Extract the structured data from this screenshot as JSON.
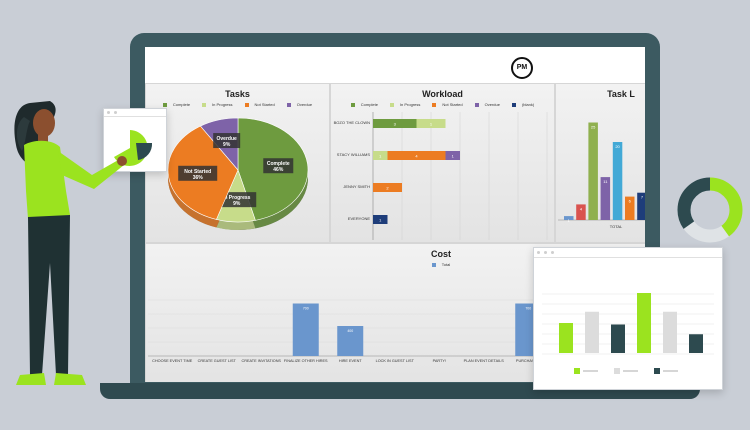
{
  "logo_text": "PM",
  "colors": {
    "complete": "#6e9b3f",
    "in_progress": "#c7dc8a",
    "not_started": "#ec7c22",
    "overdue": "#7e63a8",
    "blank": "#1e3d7a",
    "total": "#6a96cd",
    "accent": "#9be31f",
    "dark": "#2d4a4f"
  },
  "tasks": {
    "title": "Tasks",
    "legend": [
      "Complete",
      "In Progress",
      "Not Started",
      "Overdue"
    ],
    "slices": [
      {
        "label": "Complete",
        "pct": "46%",
        "value": 46
      },
      {
        "label": "In Progress",
        "pct": "9%",
        "value": 9
      },
      {
        "label": "Not Started",
        "pct": "36%",
        "value": 36
      },
      {
        "label": "Overdue",
        "pct": "9%",
        "value": 9
      }
    ]
  },
  "workload": {
    "title": "Workload",
    "legend": [
      "Complete",
      "In Progress",
      "Not Started",
      "Overdue",
      "(blank)"
    ],
    "rows": [
      {
        "name": "BOZO THE CLOWN",
        "segments": [
          {
            "s": "complete",
            "v": 3
          },
          {
            "s": "in_progress",
            "v": 1
          }
        ]
      },
      {
        "name": "STACY WILLIAMS",
        "segments": [
          {
            "s": "in_progress",
            "v": 1
          },
          {
            "s": "not_started",
            "v": 4
          },
          {
            "s": "overdue",
            "v": 1
          }
        ]
      },
      {
        "name": "JENNY SMITH",
        "segments": [
          {
            "s": "not_started",
            "v": 2
          }
        ]
      },
      {
        "name": "EVERYONE",
        "segments": [
          {
            "s": "blank",
            "v": 1
          }
        ]
      }
    ]
  },
  "task_list": {
    "title": "Task L",
    "xlabel": "TOTAL",
    "bars": [
      {
        "v": 1,
        "color": "#6a96cd",
        "label": "1"
      },
      {
        "v": 4,
        "color": "#d9534f",
        "label": "4"
      },
      {
        "v": 25,
        "color": "#8fb04e",
        "label": "25"
      },
      {
        "v": 11,
        "color": "#7e63a8",
        "label": "11"
      },
      {
        "v": 20,
        "color": "#42a9d6",
        "label": "20"
      },
      {
        "v": 6,
        "color": "#ec7c22",
        "label": "6"
      },
      {
        "v": 7,
        "color": "#1e3d7a",
        "label": "7"
      }
    ]
  },
  "cost": {
    "title": "Cost",
    "legend": "Total",
    "categories": [
      "CHOOSE EVENT TIME",
      "CREATE GUEST LIST",
      "CREATE INVITATIONS",
      "FINALIZE OTHER HIRES",
      "HIRE EVENT",
      "LOCK IN GUEST LIST",
      "PARTY!",
      "PLAN EVENT DETAILS",
      "PURCHASE E"
    ],
    "values": [
      0,
      0,
      0,
      700,
      400,
      0,
      0,
      0,
      700
    ],
    "labels": [
      "",
      "",
      "",
      "700",
      "400",
      "",
      "",
      "",
      "700"
    ]
  },
  "popup_chart": {
    "bars": [
      {
        "v": 40,
        "color": "#9be31f"
      },
      {
        "v": 55,
        "color": "#dcdcdc"
      },
      {
        "v": 38,
        "color": "#2d4a4f"
      },
      {
        "v": 80,
        "color": "#9be31f"
      },
      {
        "v": 55,
        "color": "#dcdcdc"
      },
      {
        "v": 25,
        "color": "#2d4a4f"
      }
    ],
    "legend": [
      {
        "color": "#9be31f"
      },
      {
        "color": "#dcdcdc"
      },
      {
        "color": "#2d4a4f"
      }
    ]
  },
  "donut": {
    "segments": [
      {
        "v": 40,
        "color": "#9be31f"
      },
      {
        "v": 25,
        "color": "#dfe3e6"
      },
      {
        "v": 35,
        "color": "#2d4a4f"
      }
    ]
  }
}
